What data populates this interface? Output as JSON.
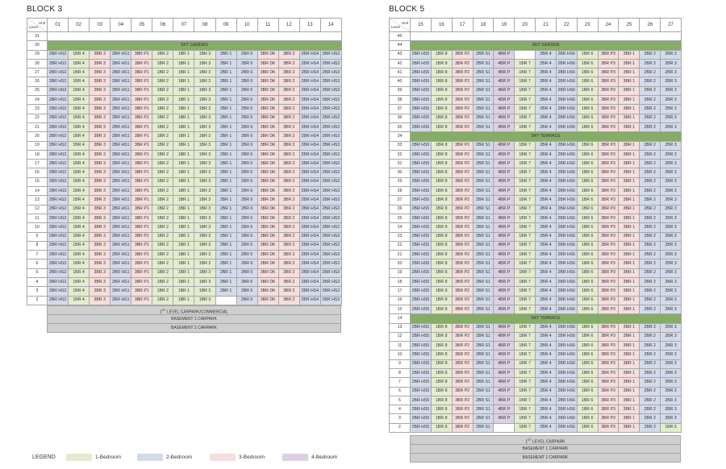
{
  "block3": {
    "title": "BLOCK 3",
    "corner_unit": "Unit",
    "corner_level": "Level",
    "units": [
      "01",
      "02",
      "03",
      "04",
      "05",
      "06",
      "07",
      "08",
      "09",
      "10",
      "11",
      "12",
      "13",
      "14"
    ],
    "top_level": "31",
    "sky_garden_level": "30",
    "sky_garden_label": "SKY GARDEN",
    "levels": [
      "29",
      "28",
      "27",
      "26",
      "25",
      "24",
      "23",
      "22",
      "21",
      "20",
      "19",
      "18",
      "17",
      "16",
      "15",
      "14",
      "13",
      "12",
      "11",
      "10",
      "9",
      "8",
      "7",
      "6",
      "5",
      "4",
      "3",
      "2"
    ],
    "stack_types": [
      "2BR HS2",
      "1BR 4",
      "3BR 3",
      "2BR HS1",
      "3BR P1",
      "1BR 2",
      "1BR 1",
      "1BR 3",
      "2BR 1",
      "2BR 6",
      "3BR DK",
      "3BR 2",
      "2BR HS4",
      "2BR HS3"
    ],
    "stack_categories": [
      2,
      1,
      3,
      2,
      3,
      1,
      1,
      1,
      2,
      2,
      3,
      3,
      2,
      2
    ],
    "level2_types": [
      "2BR HS2",
      "1BR 4",
      "3BR 3",
      "2BR HS1",
      "3BR P1",
      "1BR 2",
      "1BR 1",
      "1BR 3",
      "",
      "2BR 6",
      "3BR DK",
      "3BR 2",
      "2BR HS4",
      "2BR HS3"
    ],
    "carpark_label": "COMMERCIAL",
    "carpark_pre": "1",
    "carpark_sup": "ST",
    "carpark_post": " LEVEL CARPARK/",
    "basement1": "BASEMENT 1 CARPARK",
    "basement2": "BASEMENT 2 CARPARK"
  },
  "block5": {
    "title": "BLOCK 5",
    "corner_unit": "Unit",
    "corner_level": "Level",
    "units": [
      "15",
      "16",
      "17",
      "18",
      "19",
      "20",
      "21",
      "22",
      "23",
      "24",
      "25",
      "26",
      "27"
    ],
    "top_level": "45",
    "sky_garden_level": "44",
    "sky_garden_label": "SKY GARDEN",
    "upper_levels": [
      "43",
      "42",
      "41",
      "40",
      "39",
      "38",
      "37",
      "36",
      "35"
    ],
    "terrace1_level": "34",
    "terrace1_label": "SKY TERRACE",
    "mid_levels": [
      "33",
      "32",
      "31",
      "30",
      "29",
      "28",
      "27",
      "26",
      "25",
      "24",
      "23",
      "22",
      "21",
      "20",
      "19",
      "18",
      "17",
      "16",
      "15"
    ],
    "terrace2_level": "14",
    "terrace2_label": "SKY TERRACE",
    "lower_levels": [
      "13",
      "12",
      "11",
      "10",
      "9",
      "8",
      "7",
      "6",
      "5",
      "4",
      "3"
    ],
    "bottom_level": "2",
    "stack_types": [
      "2BR HS5",
      "1BR 8",
      "3BR P2",
      "2BR S1",
      "4BR P",
      "1BR 7",
      "2BR 4",
      "2BR HS6",
      "1BR 6",
      "3BR P3",
      "3BR 1",
      "2BR 2",
      "2BR 3"
    ],
    "stack_categories": [
      2,
      1,
      3,
      2,
      4,
      1,
      2,
      2,
      1,
      3,
      3,
      2,
      2
    ],
    "top_row_types": [
      "2BR HS5",
      "1BR 8",
      "3BR P2",
      "2BR S1",
      "4BR P",
      "",
      "2BR 4",
      "2BR HS6",
      "1BR 6",
      "3BR P3",
      "3BR 1",
      "2BR 2",
      "2BR 3"
    ],
    "level2_types": [
      "2BR HS5",
      "1BR 8",
      "3BR P2",
      "2BR S1",
      "",
      "1BR 7",
      "2BR 4",
      "2BR HS6",
      "1BR 6",
      "3BR P3",
      "3BR 1",
      "2BR 2",
      "1BR 5"
    ],
    "level2_categories": [
      2,
      1,
      3,
      2,
      0,
      1,
      2,
      2,
      1,
      3,
      3,
      2,
      1
    ],
    "carpark_pre": "1",
    "carpark_sup": "ST",
    "carpark_post": " LEVEL CARPARK",
    "basement1": "BASEMENT 1 CARPARK",
    "basement2": "BASEMENT 2 CARPARK"
  },
  "legend": {
    "title": "LEGEND",
    "items": [
      {
        "label": "1-Bedroom",
        "color": "#e3ecce"
      },
      {
        "label": "2-Bedroom",
        "color": "#d3dbea"
      },
      {
        "label": "3-Bedroom",
        "color": "#f6dedd"
      },
      {
        "label": "4-Bedroom",
        "color": "#ddd0e2"
      }
    ]
  }
}
